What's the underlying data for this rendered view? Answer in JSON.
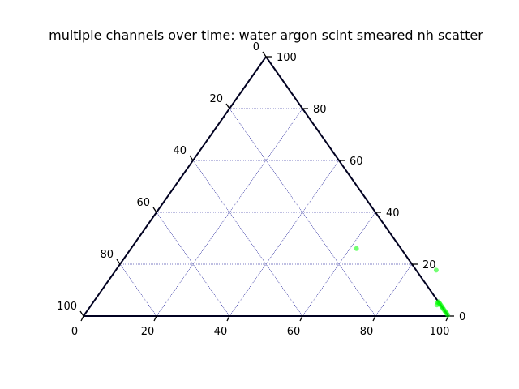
{
  "chart_data": {
    "type": "scatter",
    "subtype": "ternary",
    "title": "multiple channels over time: water argon scint smeared nh scatter",
    "scale": 100,
    "ticks": [
      0,
      20,
      40,
      60,
      80,
      100
    ],
    "grid": true,
    "grid_color": "#00008b",
    "axis_color": "#000020",
    "point_color": "#00ff00",
    "series": [
      {
        "points": [
          {
            "bottom": 61.8,
            "right": 26.0,
            "left": 12.2
          },
          {
            "bottom": 87.8,
            "right": 17.7,
            "left": -5.5
          },
          {
            "bottom": 94.7,
            "right": 4.3,
            "left": 1.0
          },
          {
            "bottom": 94.4,
            "right": 5.2,
            "left": 0.4
          },
          {
            "bottom": 94.5,
            "right": 5.5,
            "left": 0.0
          },
          {
            "bottom": 95.0,
            "right": 5.0,
            "left": 0.0
          },
          {
            "bottom": 95.4,
            "right": 4.6,
            "left": 0.0
          },
          {
            "bottom": 95.9,
            "right": 4.1,
            "left": 0.0
          },
          {
            "bottom": 96.4,
            "right": 3.6,
            "left": 0.0
          },
          {
            "bottom": 96.9,
            "right": 3.1,
            "left": 0.0
          },
          {
            "bottom": 97.4,
            "right": 2.6,
            "left": 0.0
          },
          {
            "bottom": 98.0,
            "right": 2.0,
            "left": 0.0
          },
          {
            "bottom": 98.5,
            "right": 1.5,
            "left": 0.0
          },
          {
            "bottom": 99.0,
            "right": 1.0,
            "left": 0.0
          },
          {
            "bottom": 99.6,
            "right": 0.4,
            "left": 0.0
          }
        ]
      }
    ]
  }
}
